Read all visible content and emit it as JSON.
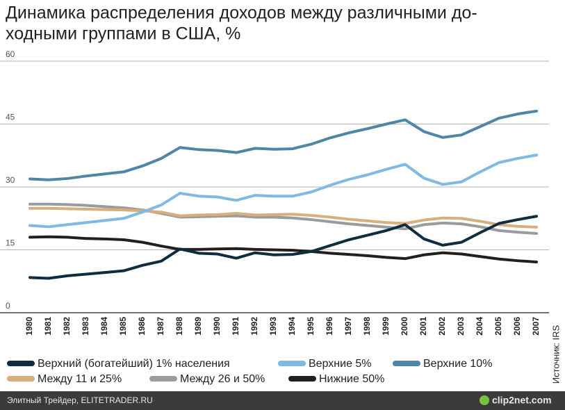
{
  "chart_data": {
    "type": "line",
    "title": [
      "Динамика распределения доходов между различными до-",
      "ходными группами в США, %"
    ],
    "source": "Источник: IRS",
    "categories": [
      "1980",
      "1981",
      "1982",
      "1983",
      "1984",
      "1985",
      "1986",
      "1987",
      "1988",
      "1989",
      "1990",
      "1991",
      "1992",
      "1993",
      "1994",
      "1995",
      "1996",
      "1997",
      "1998",
      "1999",
      "2000",
      "2001",
      "2002",
      "2003",
      "2004",
      "2005",
      "2006",
      "2007"
    ],
    "series": [
      {
        "name": "Верхний (богатейший) 1% населения",
        "color": "#0e2d40",
        "values": [
          8.4,
          8.2,
          8.8,
          9.2,
          9.6,
          10.0,
          11.3,
          12.3,
          15.2,
          14.2,
          14.0,
          13.0,
          14.3,
          13.8,
          13.9,
          14.6,
          16.0,
          17.4,
          18.5,
          19.6,
          21.0,
          17.6,
          16.1,
          16.8,
          19.1,
          21.3,
          22.2,
          23.0
        ]
      },
      {
        "name": "Верхние 5%",
        "color": "#80b9e1",
        "values": [
          20.8,
          20.5,
          21.0,
          21.5,
          22.0,
          22.5,
          24.0,
          25.7,
          28.5,
          27.8,
          27.6,
          26.8,
          28.0,
          27.8,
          27.8,
          28.8,
          30.4,
          31.8,
          32.9,
          34.2,
          35.4,
          32.1,
          30.6,
          31.2,
          33.6,
          35.8,
          36.8,
          37.6
        ]
      },
      {
        "name": "Верхние 10%",
        "color": "#4f86a8",
        "values": [
          31.9,
          31.7,
          32.0,
          32.6,
          33.1,
          33.6,
          35.0,
          36.8,
          39.4,
          38.9,
          38.7,
          38.2,
          39.2,
          39.0,
          39.1,
          40.2,
          41.7,
          42.9,
          43.9,
          45.0,
          46.0,
          43.2,
          41.8,
          42.4,
          44.4,
          46.4,
          47.4,
          48.1
        ]
      },
      {
        "name": "Между 11 и 25%",
        "color": "#d9ae7d",
        "values": [
          24.9,
          24.9,
          24.8,
          24.7,
          24.6,
          24.5,
          24.3,
          24.0,
          23.1,
          23.3,
          23.4,
          23.7,
          23.3,
          23.4,
          23.5,
          23.2,
          22.8,
          22.3,
          21.9,
          21.5,
          21.3,
          22.1,
          22.6,
          22.5,
          21.8,
          21.0,
          20.6,
          20.4
        ]
      },
      {
        "name": "Между 26 и 50%",
        "color": "#9b9b9d",
        "values": [
          25.9,
          25.9,
          25.8,
          25.6,
          25.3,
          25.0,
          24.5,
          23.7,
          22.8,
          22.9,
          23.0,
          23.1,
          22.8,
          22.8,
          22.6,
          22.2,
          21.7,
          21.2,
          20.8,
          20.4,
          20.0,
          21.0,
          21.4,
          21.2,
          20.5,
          19.6,
          19.2,
          18.9
        ]
      },
      {
        "name": "Нижние 50%",
        "color": "#231f20",
        "values": [
          18.0,
          18.1,
          18.0,
          17.7,
          17.6,
          17.4,
          16.8,
          15.9,
          15.1,
          15.1,
          15.2,
          15.3,
          15.1,
          15.0,
          14.9,
          14.6,
          14.2,
          13.9,
          13.6,
          13.2,
          12.9,
          13.8,
          14.3,
          14.0,
          13.4,
          12.8,
          12.4,
          12.1
        ]
      }
    ],
    "ylim": [
      0,
      60
    ],
    "yticks": [
      0,
      15,
      30,
      45,
      60
    ],
    "grid": true
  },
  "footer": {
    "left": "Элитный Трейдер, ELITETRADER.RU",
    "right": "clip2net.com"
  }
}
